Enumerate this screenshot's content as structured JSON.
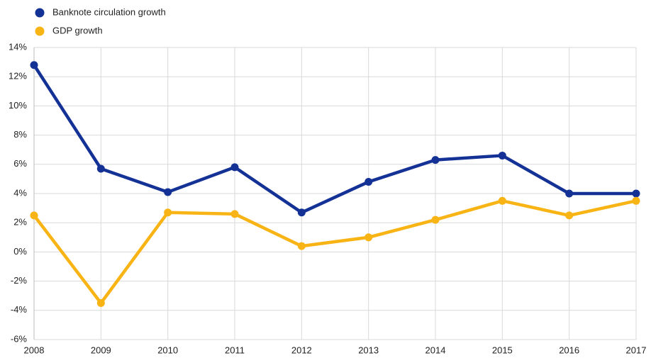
{
  "chart_data": {
    "type": "line",
    "x": [
      2008,
      2009,
      2010,
      2011,
      2012,
      2013,
      2014,
      2015,
      2016,
      2017
    ],
    "xlim": [
      2008,
      2017
    ],
    "xticks": [
      2008,
      2009,
      2010,
      2011,
      2012,
      2013,
      2014,
      2015,
      2016,
      2017
    ],
    "series": [
      {
        "name": "Banknote circulation growth",
        "color": "#143296",
        "values": [
          12.8,
          5.7,
          4.1,
          5.8,
          2.7,
          4.8,
          6.3,
          6.6,
          4.0,
          4.0
        ]
      },
      {
        "name": "GDP growth",
        "color": "#f8b414",
        "values": [
          2.5,
          -3.5,
          2.7,
          2.6,
          0.4,
          1.0,
          2.2,
          3.5,
          2.5,
          3.5
        ]
      }
    ],
    "ylim": [
      -6,
      14
    ],
    "yticks": [
      {
        "value": -6,
        "label": "-6%"
      },
      {
        "value": -4,
        "label": "-4%"
      },
      {
        "value": -2,
        "label": "-2%"
      },
      {
        "value": 0,
        "label": "0%"
      },
      {
        "value": 2,
        "label": "2%"
      },
      {
        "value": 4,
        "label": "4%"
      },
      {
        "value": 6,
        "label": "6%"
      },
      {
        "value": 8,
        "label": "8%"
      },
      {
        "value": 10,
        "label": "10%"
      },
      {
        "value": 12,
        "label": "12%"
      },
      {
        "value": 14,
        "label": "14%"
      }
    ],
    "grid": true,
    "legend": "top-left"
  }
}
